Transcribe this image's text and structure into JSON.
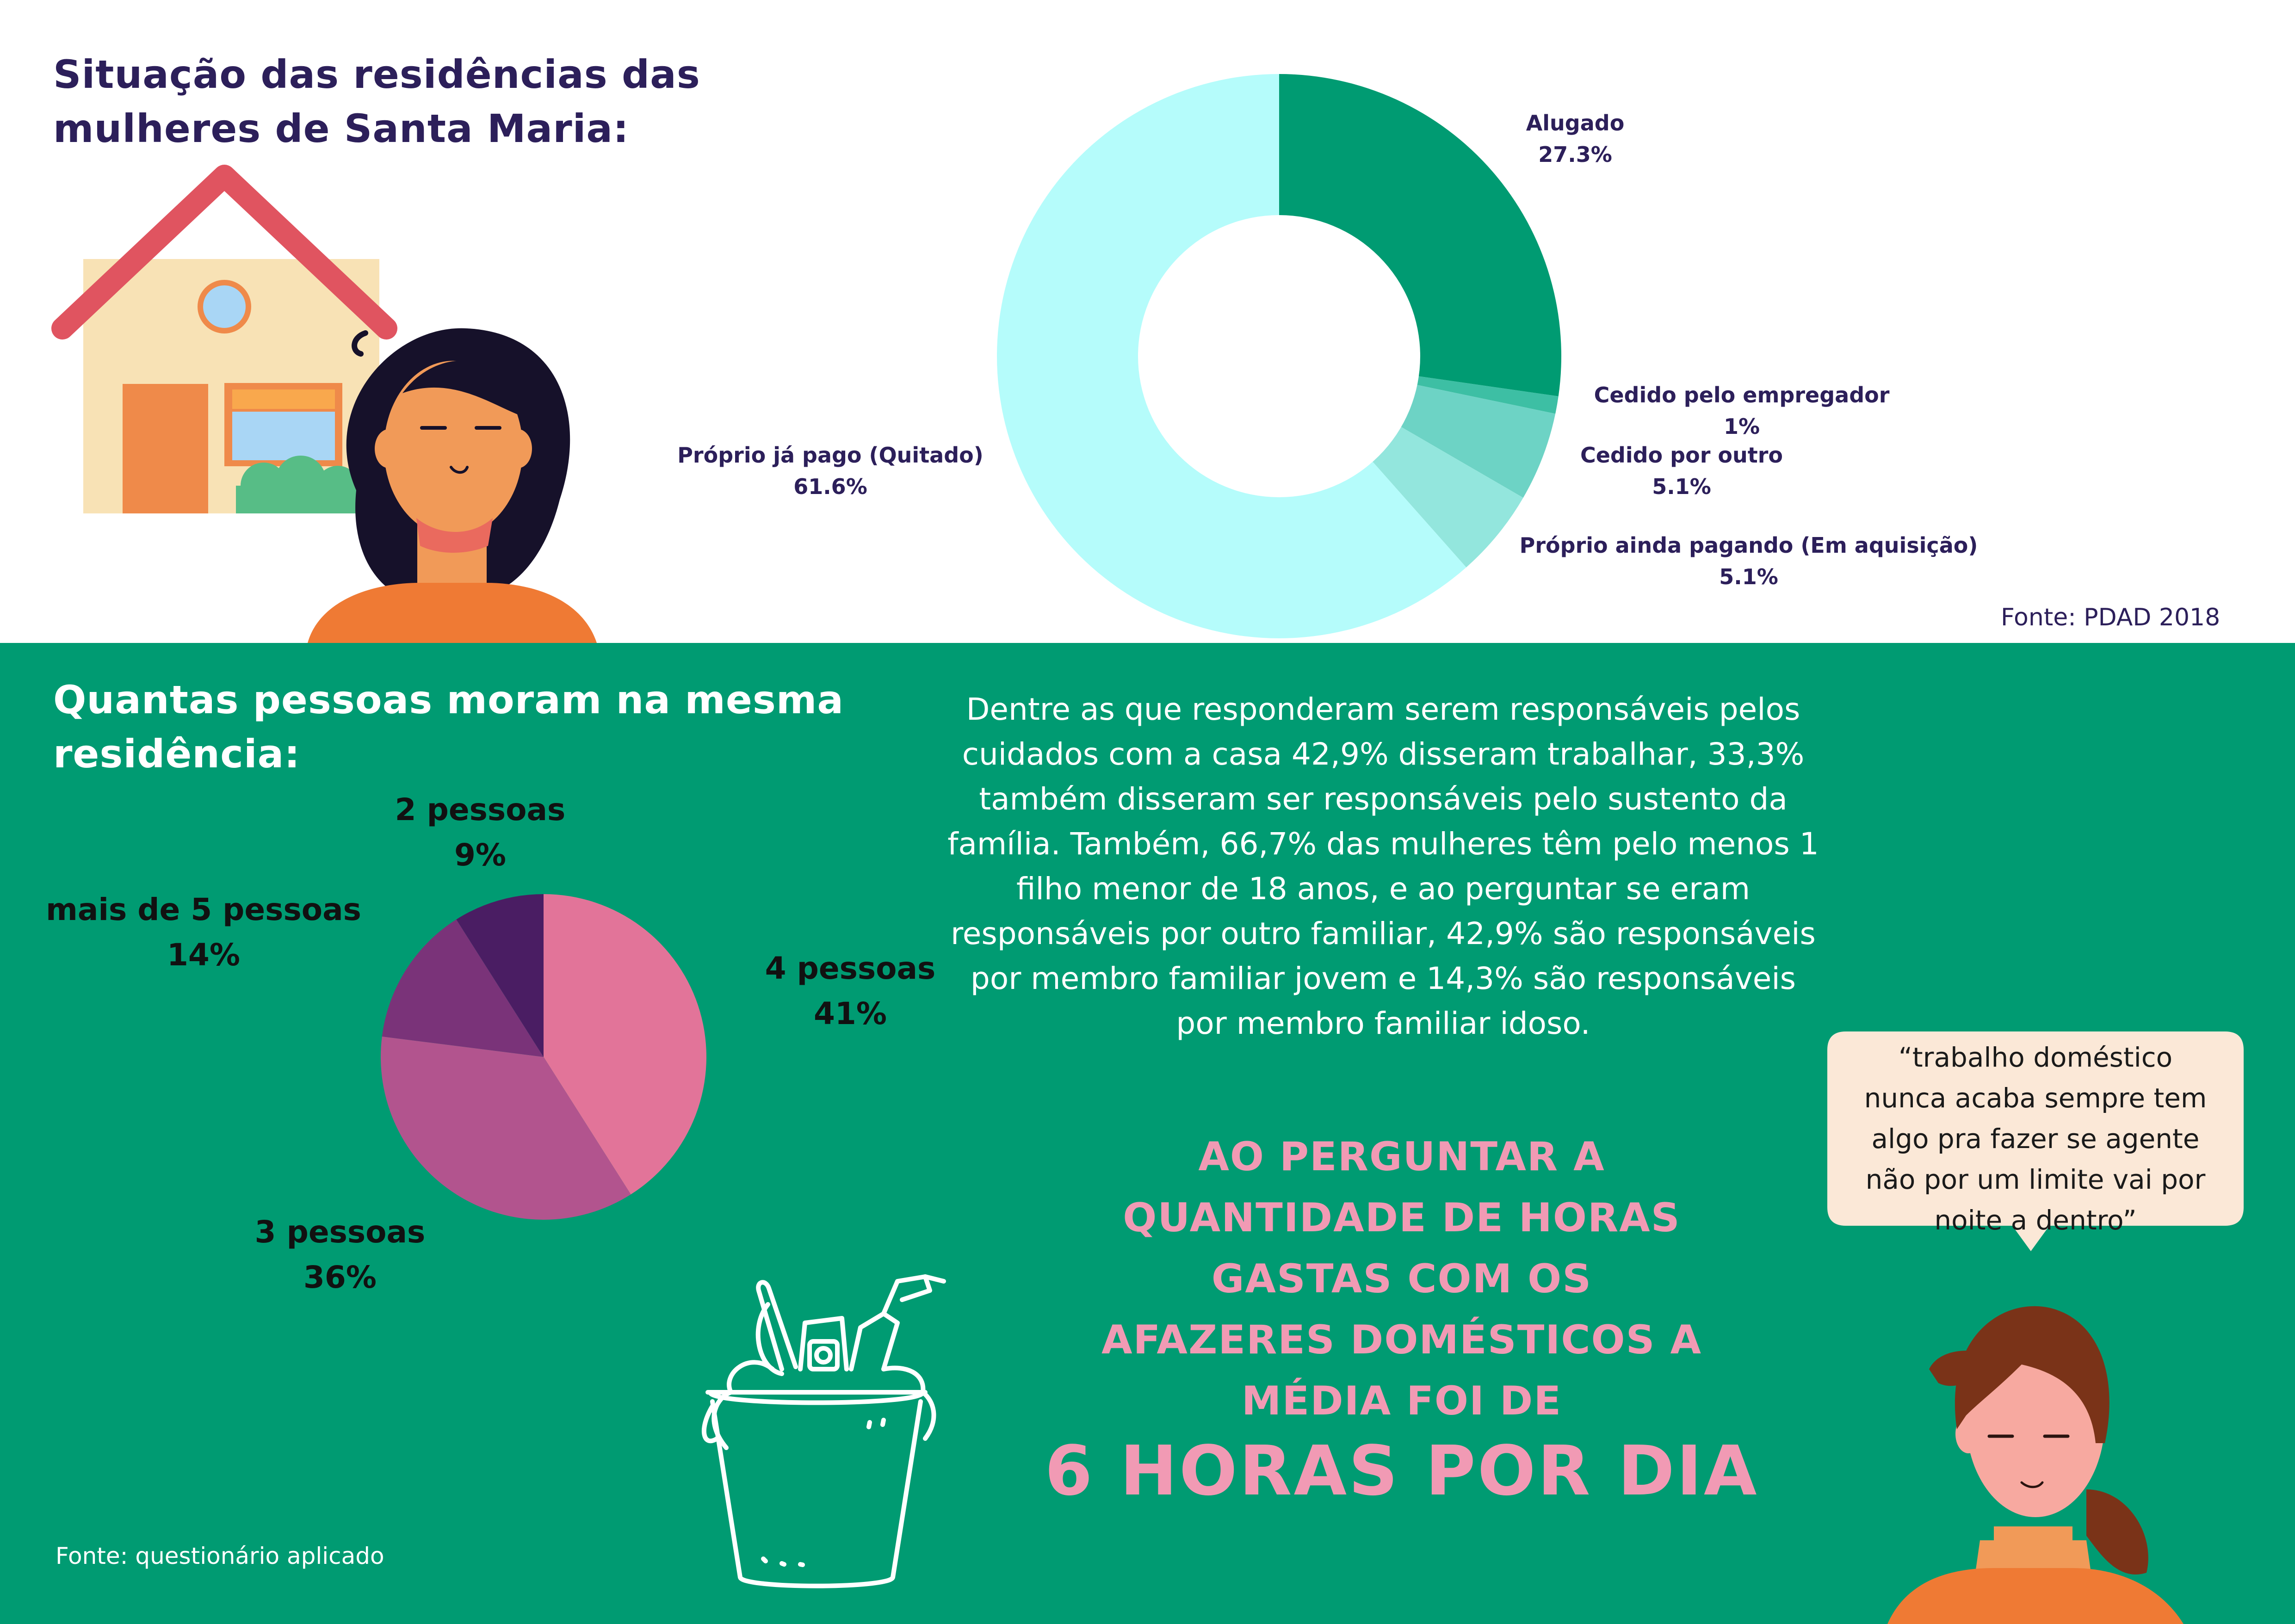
{
  "residence": {
    "title_line1": "Situação das residências das",
    "title_line2": "mulheres de Santa Maria:",
    "source": "Fonte: PDAD 2018"
  },
  "household": {
    "title_line1": "Quantas pessoas moram na mesma",
    "title_line2": "residência:",
    "source": "Fonte: questionário aplicado"
  },
  "paragraph": {
    "lines": [
      "Dentre as que responderam serem responsáveis pelos",
      "cuidados com a casa 42,9% disseram trabalhar, 33,3%",
      "também disseram ser responsáveis pelo sustento da",
      "família. Também, 66,7% das mulheres têm pelo menos 1",
      "filho menor de 18 anos, e ao perguntar se eram",
      "responsáveis por outro familiar, 42,9% são responsáveis",
      "por membro familiar jovem e 14,3% são responsáveis",
      "por membro familiar idoso."
    ]
  },
  "highlight": {
    "lines": [
      "AO PERGUNTAR A",
      "QUANTIDADE DE HORAS",
      "GASTAS COM OS",
      "AFAZERES DOMÉSTICOS A",
      "MÉDIA FOI DE"
    ],
    "big": "6 HORAS POR DIA"
  },
  "quote": {
    "lines": [
      "“trabalho doméstico",
      "nunca acaba sempre tem",
      "algo pra fazer se agente",
      "não por um limite vai por",
      "noite a dentro”"
    ]
  },
  "icons": {
    "house": "house-icon",
    "woman1": "woman-dark-hair-icon",
    "bucket": "cleaning-bucket-icon",
    "woman2": "woman-brown-hair-icon"
  },
  "colors": {
    "navy": "#2c1f5a",
    "green": "#009b72",
    "pink_text": "#f19ab4"
  },
  "chart_data": [
    {
      "type": "pie",
      "variant": "donut",
      "title": "",
      "categories": [
        "Alugado",
        "Cedido pelo empregador",
        "Cedido por outro",
        "Próprio ainda pagando (Em aquisição)",
        "Próprio já pago (Quitado)"
      ],
      "values": [
        27.3,
        1,
        5.1,
        5.1,
        61.6
      ],
      "value_labels": [
        "27.3%",
        "1%",
        "5.1%",
        "5.1%",
        "61.6%"
      ],
      "colors": [
        "#009b72",
        "#3dbfa4",
        "#6dd3c5",
        "#93e6dd",
        "#b5fcfb"
      ]
    },
    {
      "type": "pie",
      "title": "",
      "categories": [
        "4 pessoas",
        "3 pessoas",
        "mais de 5 pessoas",
        "2 pessoas"
      ],
      "values": [
        41,
        36,
        14,
        9
      ],
      "value_labels": [
        "41%",
        "36%",
        "14%",
        "9%"
      ],
      "colors": [
        "#e27499",
        "#b2548e",
        "#7a3379",
        "#4a1d63"
      ]
    }
  ]
}
